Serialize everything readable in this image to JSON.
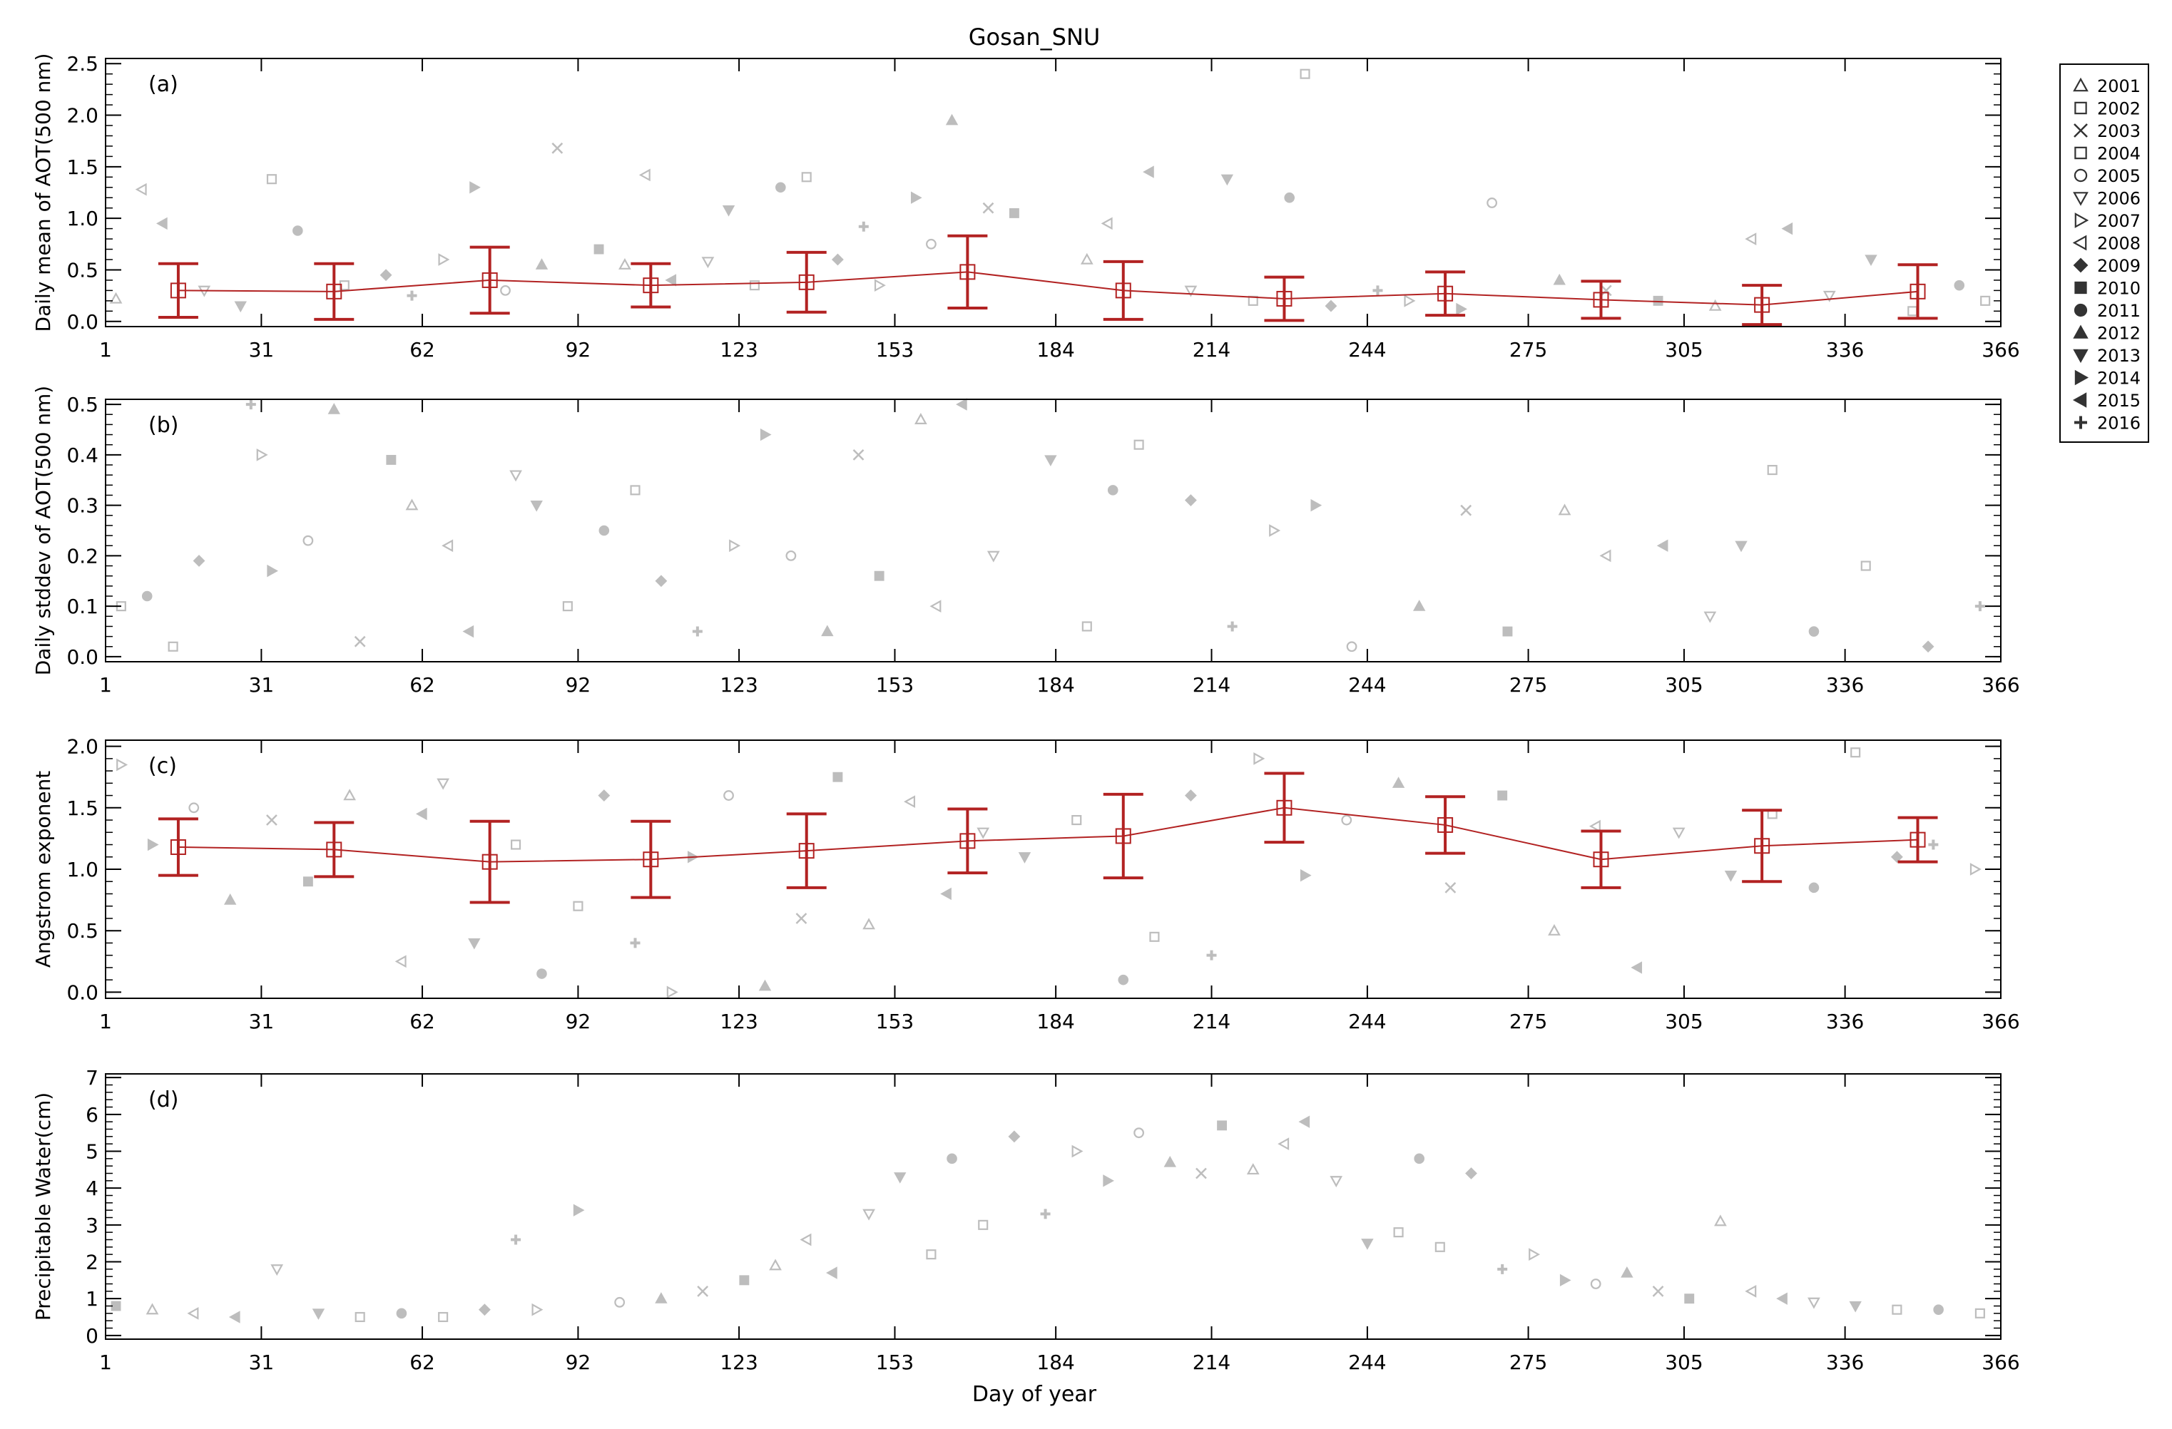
{
  "title": "Gosan_SNU",
  "xlabel": "Day of year",
  "x_ticks": [
    1,
    31,
    62,
    92,
    123,
    153,
    184,
    214,
    244,
    275,
    305,
    336,
    366
  ],
  "legend": {
    "entries": [
      {
        "label": "2001",
        "marker": "triangle-open"
      },
      {
        "label": "2002",
        "marker": "square-open"
      },
      {
        "label": "2003",
        "marker": "x"
      },
      {
        "label": "2004",
        "marker": "square-open"
      },
      {
        "label": "2005",
        "marker": "circle-open"
      },
      {
        "label": "2006",
        "marker": "triangle-down-open"
      },
      {
        "label": "2007",
        "marker": "triangle-right-open"
      },
      {
        "label": "2008",
        "marker": "triangle-left-open"
      },
      {
        "label": "2009",
        "marker": "diamond-filled"
      },
      {
        "label": "2010",
        "marker": "square-filled"
      },
      {
        "label": "2011",
        "marker": "circle-filled"
      },
      {
        "label": "2012",
        "marker": "triangle-filled"
      },
      {
        "label": "2013",
        "marker": "triangle-down-filled"
      },
      {
        "label": "2014",
        "marker": "triangle-right-filled"
      },
      {
        "label": "2015",
        "marker": "triangle-left-filled"
      },
      {
        "label": "2016",
        "marker": "plus"
      }
    ]
  },
  "colors": {
    "scatter": "#bdbdbd",
    "mean": "#b22222",
    "axis": "#000000"
  },
  "chart_data": [
    {
      "type": "scatter",
      "panel": "(a)",
      "ylabel": "Daily mean of AOT(500 nm)",
      "xlim": [
        1,
        366
      ],
      "ylim": [
        -0.05,
        2.55
      ],
      "yticks": [
        0.0,
        0.5,
        1.0,
        1.5,
        2.0,
        2.5
      ],
      "ytick_labels": [
        "0.0",
        "0.5",
        "1.0",
        "1.5",
        "2.0",
        "2.5"
      ],
      "monthly_mean": {
        "x": [
          15,
          45,
          75,
          106,
          136,
          167,
          197,
          228,
          259,
          289,
          320,
          350
        ],
        "y": [
          0.3,
          0.29,
          0.4,
          0.35,
          0.38,
          0.48,
          0.3,
          0.22,
          0.27,
          0.21,
          0.16,
          0.29
        ],
        "err": [
          0.26,
          0.27,
          0.32,
          0.21,
          0.29,
          0.35,
          0.28,
          0.21,
          0.21,
          0.18,
          0.19,
          0.26
        ]
      },
      "daily_points": {
        "x": [
          3,
          8,
          12,
          20,
          27,
          33,
          38,
          47,
          55,
          60,
          66,
          72,
          78,
          85,
          88,
          96,
          101,
          105,
          110,
          117,
          121,
          126,
          131,
          136,
          142,
          147,
          150,
          157,
          160,
          164,
          171,
          176,
          190,
          194,
          202,
          210,
          217,
          222,
          229,
          232,
          237,
          246,
          252,
          262,
          268,
          281,
          290,
          300,
          311,
          318,
          325,
          333,
          341,
          349,
          358,
          363
        ],
        "y": [
          0.22,
          1.28,
          0.95,
          0.3,
          0.15,
          1.38,
          0.88,
          0.35,
          0.45,
          0.25,
          0.6,
          1.3,
          0.3,
          0.55,
          1.68,
          0.7,
          0.55,
          1.42,
          0.4,
          0.58,
          1.08,
          0.35,
          1.3,
          1.4,
          0.6,
          0.92,
          0.35,
          1.2,
          0.75,
          1.95,
          1.1,
          1.05,
          0.6,
          0.95,
          1.45,
          0.3,
          1.38,
          0.2,
          1.2,
          2.4,
          0.15,
          0.3,
          0.2,
          0.12,
          1.15,
          0.4,
          0.3,
          0.2,
          0.15,
          0.8,
          0.9,
          0.25,
          0.6,
          0.1,
          0.35,
          0.2
        ]
      }
    },
    {
      "type": "scatter",
      "panel": "(b)",
      "ylabel": "Daily stddev of AOT(500 nm)",
      "xlim": [
        1,
        366
      ],
      "ylim": [
        -0.01,
        0.51
      ],
      "yticks": [
        0.0,
        0.1,
        0.2,
        0.3,
        0.4,
        0.5
      ],
      "ytick_labels": [
        "0.0",
        "0.1",
        "0.2",
        "0.3",
        "0.4",
        "0.5"
      ],
      "daily_points": {
        "x": [
          4,
          9,
          14,
          19,
          29,
          31,
          33,
          40,
          45,
          50,
          56,
          60,
          67,
          71,
          80,
          84,
          90,
          97,
          103,
          108,
          115,
          122,
          128,
          133,
          140,
          146,
          150,
          158,
          161,
          166,
          172,
          183,
          190,
          195,
          200,
          210,
          218,
          226,
          234,
          241,
          254,
          263,
          271,
          282,
          290,
          301,
          310,
          316,
          322,
          330,
          340,
          352,
          362
        ],
        "y": [
          0.1,
          0.12,
          0.02,
          0.19,
          0.5,
          0.4,
          0.17,
          0.23,
          0.49,
          0.03,
          0.39,
          0.3,
          0.22,
          0.05,
          0.36,
          0.3,
          0.1,
          0.25,
          0.33,
          0.15,
          0.05,
          0.22,
          0.44,
          0.2,
          0.05,
          0.4,
          0.16,
          0.47,
          0.1,
          0.5,
          0.2,
          0.39,
          0.06,
          0.33,
          0.42,
          0.31,
          0.06,
          0.25,
          0.3,
          0.02,
          0.1,
          0.29,
          0.05,
          0.29,
          0.2,
          0.22,
          0.08,
          0.22,
          0.37,
          0.05,
          0.18,
          0.02,
          0.1
        ]
      }
    },
    {
      "type": "scatter",
      "panel": "(c)",
      "ylabel": "Angstrom exponent",
      "xlim": [
        1,
        366
      ],
      "ylim": [
        -0.05,
        2.05
      ],
      "yticks": [
        0.0,
        0.5,
        1.0,
        1.5,
        2.0
      ],
      "ytick_labels": [
        "0.0",
        "0.5",
        "1.0",
        "1.5",
        "2.0"
      ],
      "monthly_mean": {
        "x": [
          15,
          45,
          75,
          106,
          136,
          167,
          197,
          228,
          259,
          289,
          320,
          350
        ],
        "y": [
          1.18,
          1.16,
          1.06,
          1.08,
          1.15,
          1.23,
          1.27,
          1.5,
          1.36,
          1.08,
          1.19,
          1.24
        ],
        "err": [
          0.23,
          0.22,
          0.33,
          0.31,
          0.3,
          0.26,
          0.34,
          0.28,
          0.23,
          0.23,
          0.29,
          0.18
        ]
      },
      "daily_points": {
        "x": [
          4,
          10,
          18,
          25,
          33,
          40,
          48,
          58,
          62,
          66,
          72,
          80,
          85,
          92,
          97,
          103,
          110,
          114,
          121,
          128,
          135,
          142,
          148,
          156,
          163,
          170,
          178,
          188,
          197,
          203,
          210,
          214,
          223,
          232,
          240,
          250,
          260,
          270,
          280,
          288,
          296,
          304,
          314,
          322,
          330,
          338,
          346,
          353,
          361
        ],
        "y": [
          1.85,
          1.2,
          1.5,
          0.75,
          1.4,
          0.9,
          1.6,
          0.25,
          1.45,
          1.7,
          0.4,
          1.2,
          0.15,
          0.7,
          1.6,
          0.4,
          0.0,
          1.1,
          1.6,
          0.05,
          0.6,
          1.75,
          0.55,
          1.55,
          0.8,
          1.3,
          1.1,
          1.4,
          0.1,
          0.45,
          1.6,
          0.3,
          1.9,
          0.95,
          1.4,
          1.7,
          0.85,
          1.6,
          0.5,
          1.35,
          0.2,
          1.3,
          0.95,
          1.45,
          0.85,
          1.95,
          1.1,
          1.2,
          1.0
        ]
      }
    },
    {
      "type": "scatter",
      "panel": "(d)",
      "ylabel": "Precipitable Water(cm)",
      "xlim": [
        1,
        366
      ],
      "ylim": [
        -0.1,
        7.1
      ],
      "yticks": [
        0,
        1,
        2,
        3,
        4,
        5,
        6,
        7
      ],
      "ytick_labels": [
        "0",
        "1",
        "2",
        "3",
        "4",
        "5",
        "6",
        "7"
      ],
      "daily_points": {
        "x": [
          3,
          10,
          18,
          26,
          34,
          42,
          50,
          58,
          66,
          74,
          80,
          84,
          92,
          100,
          108,
          116,
          124,
          130,
          136,
          141,
          148,
          154,
          160,
          164,
          170,
          176,
          182,
          188,
          194,
          200,
          206,
          212,
          216,
          222,
          228,
          232,
          238,
          244,
          250,
          254,
          258,
          264,
          270,
          276,
          282,
          288,
          294,
          300,
          306,
          312,
          318,
          324,
          330,
          338,
          346,
          354,
          362
        ],
        "y": [
          0.8,
          0.7,
          0.6,
          0.5,
          1.8,
          0.6,
          0.5,
          0.6,
          0.5,
          0.7,
          2.6,
          0.7,
          3.4,
          0.9,
          1.0,
          1.2,
          1.5,
          1.9,
          2.6,
          1.7,
          3.3,
          4.3,
          2.2,
          4.8,
          3.0,
          5.4,
          3.3,
          5.0,
          4.2,
          5.5,
          4.7,
          4.4,
          5.7,
          4.5,
          5.2,
          5.8,
          4.2,
          2.5,
          2.8,
          4.8,
          2.4,
          4.4,
          1.8,
          2.2,
          1.5,
          1.4,
          1.7,
          1.2,
          1.0,
          3.1,
          1.2,
          1.0,
          0.9,
          0.8,
          0.7,
          0.7,
          0.6
        ]
      }
    }
  ]
}
